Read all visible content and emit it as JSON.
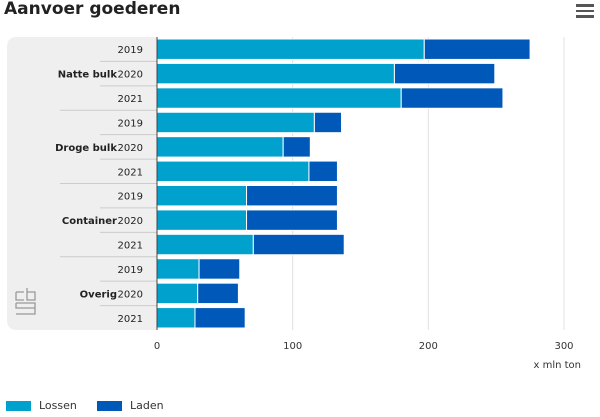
{
  "title": "Aanvoer goederen",
  "menu_icon": "hamburger-menu-icon",
  "chart_data": {
    "type": "bar",
    "orientation": "horizontal",
    "stacked": true,
    "title": "Aanvoer goederen",
    "xlabel": "x mln ton",
    "xlim": [
      0,
      300
    ],
    "xticks": [
      "0",
      "100",
      "200",
      "300"
    ],
    "groups": [
      {
        "name": "Natte bulk",
        "years": [
          "2019",
          "2020",
          "2021"
        ]
      },
      {
        "name": "Droge bulk",
        "years": [
          "2019",
          "2020",
          "2021"
        ]
      },
      {
        "name": "Container",
        "years": [
          "2019",
          "2020",
          "2021"
        ]
      },
      {
        "name": "Overig",
        "years": [
          "2019",
          "2020",
          "2021"
        ]
      }
    ],
    "series": [
      {
        "name": "Lossen",
        "color": "#00a1cd",
        "values": [
          197,
          175,
          180,
          116,
          93,
          112,
          66,
          66,
          71,
          31,
          30,
          28
        ]
      },
      {
        "name": "Laden",
        "color": "#0058b8",
        "values": [
          78,
          74,
          75,
          20,
          20,
          21,
          67,
          67,
          67,
          30,
          30,
          37
        ]
      }
    ],
    "legend": "bottom-left"
  }
}
